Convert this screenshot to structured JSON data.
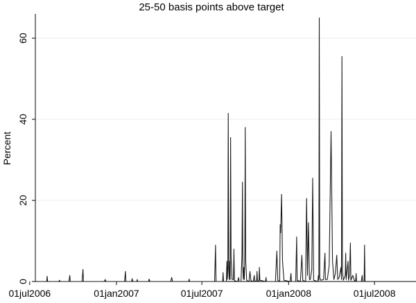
{
  "chart_data": {
    "type": "line",
    "title": "25-50 basis points above target",
    "xlabel": "",
    "ylabel": "Percent",
    "xlim": [
      "2006-07-13",
      "2008-09-27"
    ],
    "ylim": [
      0,
      66
    ],
    "grid": true,
    "x_ticks": [
      {
        "label": "01jul2006",
        "date": "2006-07-01"
      },
      {
        "label": "01jan2007",
        "date": "2007-01-01"
      },
      {
        "label": "01jul2007",
        "date": "2007-07-01"
      },
      {
        "label": "01jan2008",
        "date": "2008-01-01"
      },
      {
        "label": "01jul2008",
        "date": "2008-07-01"
      }
    ],
    "y_ticks": [
      0,
      20,
      40,
      60
    ],
    "series": [
      {
        "points": [
          [
            "2006-07-20",
            0
          ],
          [
            "2006-08-06",
            0
          ],
          [
            "2006-08-07",
            1.3
          ],
          [
            "2006-08-08",
            0
          ],
          [
            "2006-09-01",
            0
          ],
          [
            "2006-09-02",
            0.3
          ],
          [
            "2006-09-04",
            0
          ],
          [
            "2006-09-22",
            0
          ],
          [
            "2006-09-24",
            1.5
          ],
          [
            "2006-09-25",
            0
          ],
          [
            "2006-10-20",
            0
          ],
          [
            "2006-10-22",
            3.0
          ],
          [
            "2006-10-23",
            0
          ],
          [
            "2006-12-06",
            0
          ],
          [
            "2006-12-08",
            0.5
          ],
          [
            "2006-12-10",
            0
          ],
          [
            "2007-01-18",
            0
          ],
          [
            "2007-01-20",
            2.5
          ],
          [
            "2007-01-21",
            0
          ],
          [
            "2007-02-02",
            0
          ],
          [
            "2007-02-03",
            0.7
          ],
          [
            "2007-02-05",
            0
          ],
          [
            "2007-02-13",
            0
          ],
          [
            "2007-02-14",
            0.5
          ],
          [
            "2007-02-15",
            0
          ],
          [
            "2007-03-10",
            0
          ],
          [
            "2007-03-11",
            0.6
          ],
          [
            "2007-03-13",
            0
          ],
          [
            "2007-04-26",
            0
          ],
          [
            "2007-04-28",
            1.0
          ],
          [
            "2007-04-30",
            0
          ],
          [
            "2007-06-03",
            0
          ],
          [
            "2007-06-04",
            0.6
          ],
          [
            "2007-06-05",
            0
          ],
          [
            "2007-07-28",
            0
          ],
          [
            "2007-07-30",
            9.0
          ],
          [
            "2007-07-31",
            0
          ],
          [
            "2007-08-14",
            0
          ],
          [
            "2007-08-15",
            2.2
          ],
          [
            "2007-08-16",
            0
          ],
          [
            "2007-08-22",
            0
          ],
          [
            "2007-08-23",
            5.0
          ],
          [
            "2007-08-24",
            0.5
          ],
          [
            "2007-08-25",
            3.5
          ],
          [
            "2007-08-26",
            41.5
          ],
          [
            "2007-08-27",
            3.0
          ],
          [
            "2007-08-28",
            0.5
          ],
          [
            "2007-08-29",
            5.0
          ],
          [
            "2007-08-30",
            0.5
          ],
          [
            "2007-08-31",
            35.5
          ],
          [
            "2007-09-01",
            6.0
          ],
          [
            "2007-09-03",
            0.5
          ],
          [
            "2007-09-06",
            0.5
          ],
          [
            "2007-09-07",
            8.0
          ],
          [
            "2007-09-08",
            0.2
          ],
          [
            "2007-09-15",
            0
          ],
          [
            "2007-09-17",
            1.0
          ],
          [
            "2007-09-18",
            0
          ],
          [
            "2007-09-22",
            0
          ],
          [
            "2007-09-24",
            6.5
          ],
          [
            "2007-09-25",
            24.5
          ],
          [
            "2007-09-26",
            3.0
          ],
          [
            "2007-09-27",
            0.5
          ],
          [
            "2007-09-28",
            3.5
          ],
          [
            "2007-09-29",
            0.5
          ],
          [
            "2007-09-30",
            7.0
          ],
          [
            "2007-10-01",
            38.0
          ],
          [
            "2007-10-02",
            5.0
          ],
          [
            "2007-10-04",
            0.3
          ],
          [
            "2007-10-09",
            0
          ],
          [
            "2007-10-11",
            2.5
          ],
          [
            "2007-10-13",
            0.2
          ],
          [
            "2007-10-18",
            0
          ],
          [
            "2007-10-20",
            1.5
          ],
          [
            "2007-10-21",
            0.2
          ],
          [
            "2007-10-25",
            0
          ],
          [
            "2007-10-26",
            2.5
          ],
          [
            "2007-10-27",
            0.2
          ],
          [
            "2007-10-30",
            0
          ],
          [
            "2007-10-31",
            3.5
          ],
          [
            "2007-11-01",
            0.3
          ],
          [
            "2007-11-13",
            0
          ],
          [
            "2007-11-14",
            1.0
          ],
          [
            "2007-11-15",
            0
          ],
          [
            "2007-12-04",
            0
          ],
          [
            "2007-12-07",
            7.5
          ],
          [
            "2007-12-09",
            0.3
          ],
          [
            "2007-12-13",
            0
          ],
          [
            "2007-12-14",
            14.0
          ],
          [
            "2007-12-15",
            12.0
          ],
          [
            "2007-12-17",
            21.5
          ],
          [
            "2007-12-19",
            5.0
          ],
          [
            "2007-12-22",
            0.3
          ],
          [
            "2008-01-04",
            0
          ],
          [
            "2008-01-06",
            2.0
          ],
          [
            "2008-01-07",
            0
          ],
          [
            "2008-01-16",
            0
          ],
          [
            "2008-01-18",
            11.0
          ],
          [
            "2008-01-19",
            0.3
          ],
          [
            "2008-01-26",
            0
          ],
          [
            "2008-01-29",
            6.5
          ],
          [
            "2008-01-31",
            0.3
          ],
          [
            "2008-02-06",
            0
          ],
          [
            "2008-02-08",
            20.5
          ],
          [
            "2008-02-10",
            1.5
          ],
          [
            "2008-02-12",
            14.5
          ],
          [
            "2008-02-14",
            0.5
          ],
          [
            "2008-02-16",
            0.5
          ],
          [
            "2008-02-19",
            3.0
          ],
          [
            "2008-02-21",
            25.5
          ],
          [
            "2008-02-23",
            0.3
          ],
          [
            "2008-03-03",
            0
          ],
          [
            "2008-03-04",
            1.5
          ],
          [
            "2008-03-05",
            0.3
          ],
          [
            "2008-03-06",
            65.0
          ],
          [
            "2008-03-07",
            1.0
          ],
          [
            "2008-03-09",
            0.3
          ],
          [
            "2008-03-15",
            0.5
          ],
          [
            "2008-03-18",
            7.0
          ],
          [
            "2008-03-19",
            0.5
          ],
          [
            "2008-03-23",
            0.5
          ],
          [
            "2008-03-27",
            4.0
          ],
          [
            "2008-03-31",
            37.0
          ],
          [
            "2008-04-03",
            5.0
          ],
          [
            "2008-04-06",
            0.5
          ],
          [
            "2008-04-09",
            2.0
          ],
          [
            "2008-04-12",
            6.5
          ],
          [
            "2008-04-14",
            0.5
          ],
          [
            "2008-04-17",
            1.0
          ],
          [
            "2008-04-21",
            3.5
          ],
          [
            "2008-04-22",
            0.5
          ],
          [
            "2008-04-23",
            55.5
          ],
          [
            "2008-04-24",
            2.5
          ],
          [
            "2008-04-26",
            0.3
          ],
          [
            "2008-04-30",
            1.5
          ],
          [
            "2008-05-01",
            7.0
          ],
          [
            "2008-05-02",
            0.5
          ],
          [
            "2008-05-06",
            5.0
          ],
          [
            "2008-05-07",
            0.3
          ],
          [
            "2008-05-09",
            1.5
          ],
          [
            "2008-05-11",
            9.5
          ],
          [
            "2008-05-12",
            0.3
          ],
          [
            "2008-05-16",
            1.5
          ],
          [
            "2008-05-19",
            0.3
          ],
          [
            "2008-05-22",
            0
          ],
          [
            "2008-05-23",
            2.0
          ],
          [
            "2008-05-24",
            0
          ],
          [
            "2008-06-03",
            0
          ],
          [
            "2008-06-05",
            1.5
          ],
          [
            "2008-06-06",
            0
          ],
          [
            "2008-06-09",
            0
          ],
          [
            "2008-06-10",
            9.0
          ],
          [
            "2008-06-11",
            0
          ]
        ]
      }
    ]
  }
}
